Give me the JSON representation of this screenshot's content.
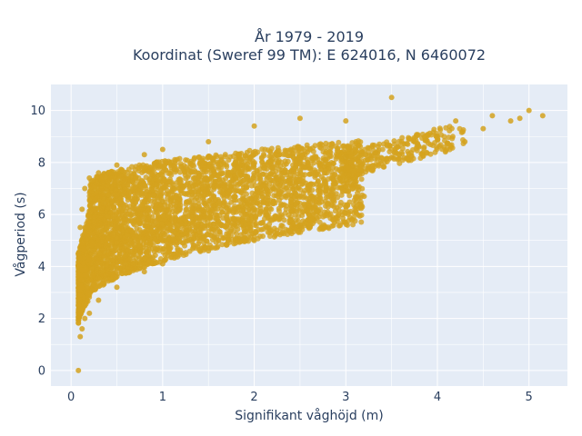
{
  "chart_data": {
    "type": "scatter",
    "title_lines": [
      "År 1979 - 2019",
      "Koordinat (Sweref 99 TM): E 624016, N 6460072"
    ],
    "xlabel": "Signifikant våghöjd (m)",
    "ylabel": "Vågperiod (s)",
    "xlim": [
      -0.22,
      5.42
    ],
    "ylim": [
      -0.6,
      11.0
    ],
    "xticks": [
      0,
      1,
      2,
      3,
      4,
      5
    ],
    "yticks": [
      0,
      2,
      4,
      6,
      8,
      10
    ],
    "grid": true,
    "marker_color": "#D4A21E",
    "plot_bg": "#E5ECF6",
    "series": [
      {
        "points": [
          [
            0.08,
            0.0
          ],
          [
            0.1,
            1.3
          ],
          [
            0.12,
            1.6
          ],
          [
            0.15,
            2.0
          ],
          [
            0.2,
            2.2
          ],
          [
            0.3,
            2.7
          ],
          [
            0.5,
            3.2
          ],
          [
            0.8,
            3.8
          ],
          [
            1.0,
            4.1
          ],
          [
            1.5,
            4.6
          ],
          [
            2.0,
            5.0
          ],
          [
            2.5,
            5.6
          ],
          [
            3.0,
            6.3
          ],
          [
            3.2,
            6.7
          ],
          [
            0.08,
            4.5
          ],
          [
            0.1,
            5.5
          ],
          [
            0.12,
            6.2
          ],
          [
            0.15,
            7.0
          ],
          [
            0.2,
            7.4
          ],
          [
            0.3,
            7.6
          ],
          [
            0.5,
            7.9
          ],
          [
            0.8,
            8.3
          ],
          [
            1.0,
            8.5
          ],
          [
            1.5,
            8.8
          ],
          [
            2.0,
            9.4
          ],
          [
            2.5,
            9.7
          ],
          [
            3.0,
            9.6
          ],
          [
            3.5,
            8.2
          ],
          [
            3.8,
            8.6
          ],
          [
            4.0,
            9.0
          ],
          [
            4.2,
            9.6
          ],
          [
            4.5,
            9.3
          ],
          [
            4.6,
            9.8
          ],
          [
            4.9,
            9.7
          ],
          [
            5.0,
            10.0
          ],
          [
            5.15,
            9.8
          ],
          [
            3.5,
            10.5
          ],
          [
            4.8,
            9.6
          ],
          [
            4.3,
            8.8
          ],
          [
            0.5,
            5.5
          ],
          [
            1.0,
            6.5
          ],
          [
            1.5,
            7.0
          ],
          [
            2.0,
            7.5
          ],
          [
            2.5,
            8.0
          ],
          [
            3.0,
            8.2
          ]
        ]
      }
    ]
  }
}
